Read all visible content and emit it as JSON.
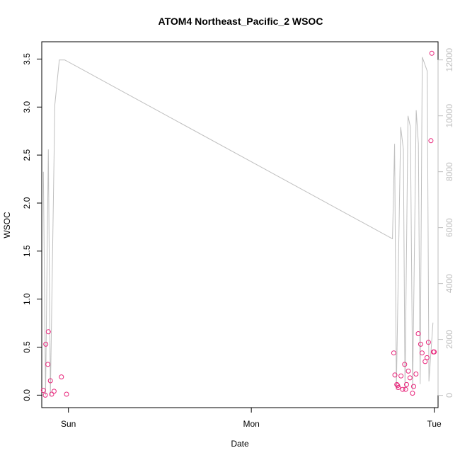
{
  "chart_data": {
    "type": "scatter",
    "title": "ATOM4 Northeast_Pacific_2 WSOC",
    "xlabel": "Date",
    "ylabel": "WSOC",
    "x_axis": {
      "type": "date",
      "range": [
        "2016-08-20T20:30",
        "2016-08-23T00:30"
      ],
      "ticks": [
        {
          "value": "2016-08-21T00:00",
          "label": "Sun"
        },
        {
          "value": "2016-08-22T00:00",
          "label": "Mon"
        },
        {
          "value": "2016-08-23T00:00",
          "label": "Tue"
        }
      ]
    },
    "y_left": {
      "range": [
        -0.13,
        3.68
      ],
      "ticks": [
        {
          "value": 0.0,
          "label": "0.0"
        },
        {
          "value": 0.5,
          "label": "0.5"
        },
        {
          "value": 1.0,
          "label": "1.0"
        },
        {
          "value": 1.5,
          "label": "1.5"
        },
        {
          "value": 2.0,
          "label": "2.0"
        },
        {
          "value": 2.5,
          "label": "2.5"
        },
        {
          "value": 3.0,
          "label": "3.0"
        },
        {
          "value": 3.5,
          "label": "3.5"
        }
      ]
    },
    "y_right": {
      "range": [
        -440,
        12650
      ],
      "color": "#bdbdbd",
      "ticks": [
        {
          "value": 0,
          "label": "0"
        },
        {
          "value": 2000,
          "label": "2000"
        },
        {
          "value": 4000,
          "label": "4000"
        },
        {
          "value": 6000,
          "label": "6000"
        },
        {
          "value": 8000,
          "label": "8000"
        },
        {
          "value": 10000,
          "label": "10000"
        },
        {
          "value": 12000,
          "label": "12000"
        }
      ]
    },
    "series": [
      {
        "kind": "points",
        "axis": "left",
        "color": "#e8247a",
        "x": [
          "2016-08-20T20:43",
          "2016-08-20T20:58",
          "2016-08-20T21:02",
          "2016-08-20T21:18",
          "2016-08-20T21:22",
          "2016-08-20T21:38",
          "2016-08-20T21:48",
          "2016-08-20T22:07",
          "2016-08-20T23:05",
          "2016-08-20T23:45",
          "2016-08-22T18:41",
          "2016-08-22T18:50",
          "2016-08-22T19:05",
          "2016-08-22T19:12",
          "2016-08-22T19:17",
          "2016-08-22T19:38",
          "2016-08-22T19:51",
          "2016-08-22T20:07",
          "2016-08-22T20:14",
          "2016-08-22T20:22",
          "2016-08-22T20:36",
          "2016-08-22T20:49",
          "2016-08-22T21:09",
          "2016-08-22T21:18",
          "2016-08-22T21:36",
          "2016-08-22T21:54",
          "2016-08-22T22:13",
          "2016-08-22T22:24",
          "2016-08-22T22:48",
          "2016-08-22T23:03",
          "2016-08-22T23:14",
          "2016-08-22T23:34",
          "2016-08-22T23:41",
          "2016-08-22T23:53",
          "2016-08-23T00:00"
        ],
        "y": [
          0.05,
          0.0,
          0.53,
          0.32,
          0.66,
          0.15,
          0.01,
          0.04,
          0.19,
          0.01,
          0.44,
          0.21,
          0.11,
          0.1,
          0.08,
          0.2,
          0.06,
          0.32,
          0.06,
          0.11,
          0.25,
          0.18,
          0.02,
          0.09,
          0.22,
          0.64,
          0.53,
          0.44,
          0.35,
          0.39,
          0.55,
          2.65,
          3.56,
          0.45,
          0.45
        ]
      },
      {
        "kind": "line",
        "axis": "right",
        "color": "#bfbfbf",
        "x": [
          "2016-08-20T20:43",
          "2016-08-20T21:00",
          "2016-08-20T21:22",
          "2016-08-20T21:38",
          "2016-08-20T22:13",
          "2016-08-20T22:48",
          "2016-08-20T23:31",
          "2016-08-22T18:31",
          "2016-08-22T18:48",
          "2016-08-22T19:02",
          "2016-08-22T19:36",
          "2016-08-22T19:57",
          "2016-08-22T20:10",
          "2016-08-22T20:33",
          "2016-08-22T20:52",
          "2016-08-22T21:10",
          "2016-08-22T21:38",
          "2016-08-22T21:55",
          "2016-08-22T22:09",
          "2016-08-22T22:26",
          "2016-08-22T23:05",
          "2016-08-22T23:18",
          "2016-08-22T23:50"
        ],
        "y": [
          8000,
          0,
          8800,
          0,
          10400,
          12000,
          12000,
          5600,
          9000,
          200,
          9600,
          8800,
          200,
          10000,
          9600,
          200,
          10200,
          9000,
          400,
          12100,
          11600,
          500,
          2600
        ]
      }
    ]
  }
}
